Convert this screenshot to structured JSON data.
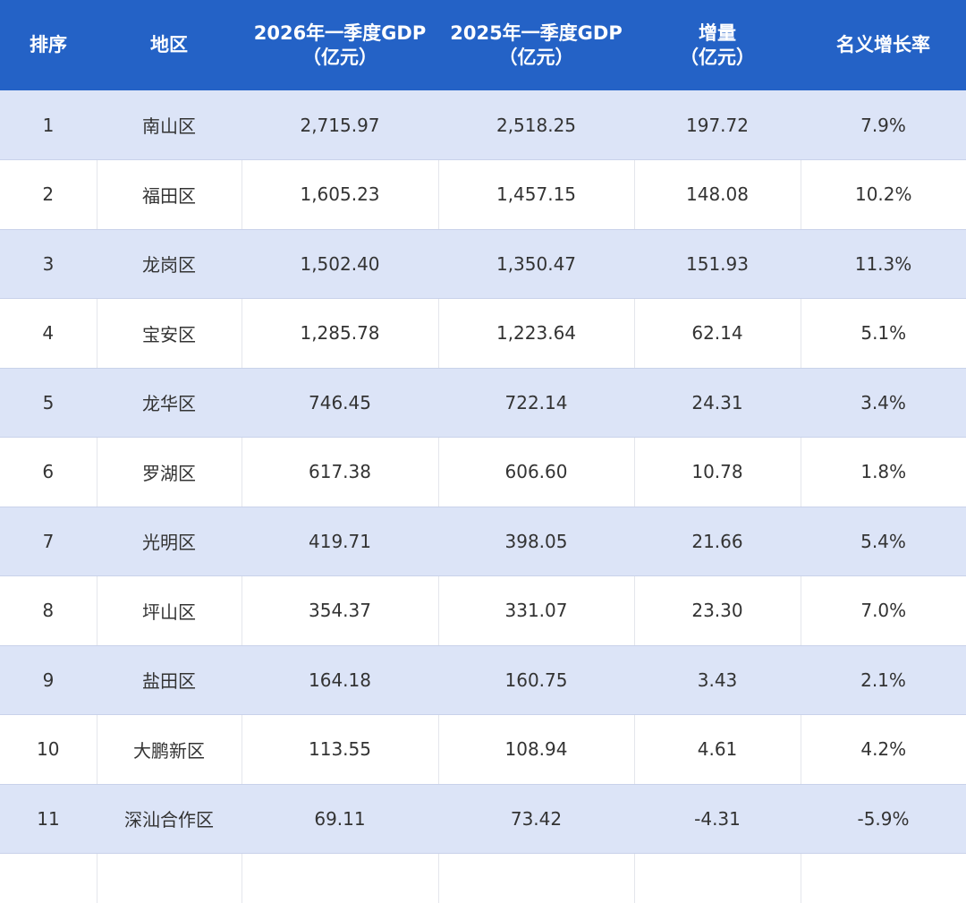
{
  "table": {
    "headers": [
      "排序",
      "地区",
      "2026年一季度GDP\n（亿元）",
      "2025年一季度GDP\n（亿元）",
      "增量\n（亿元）",
      "名义增长率"
    ],
    "rows": [
      [
        "1",
        "南山区",
        "2,715.97",
        "2,518.25",
        "197.72",
        "7.9%"
      ],
      [
        "2",
        "福田区",
        "1,605.23",
        "1,457.15",
        "148.08",
        "10.2%"
      ],
      [
        "3",
        "龙岗区",
        "1,502.40",
        "1,350.47",
        "151.93",
        "11.3%"
      ],
      [
        "4",
        "宝安区",
        "1,285.78",
        "1,223.64",
        "62.14",
        "5.1%"
      ],
      [
        "5",
        "龙华区",
        "746.45",
        "722.14",
        "24.31",
        "3.4%"
      ],
      [
        "6",
        "罗湖区",
        "617.38",
        "606.60",
        "10.78",
        "1.8%"
      ],
      [
        "7",
        "光明区",
        "419.71",
        "398.05",
        "21.66",
        "5.4%"
      ],
      [
        "8",
        "坪山区",
        "354.37",
        "331.07",
        "23.30",
        "7.0%"
      ],
      [
        "9",
        "盐田区",
        "164.18",
        "160.75",
        "3.43",
        "2.1%"
      ],
      [
        "10",
        "大鹏新区",
        "113.55",
        "108.94",
        "4.61",
        "4.2%"
      ],
      [
        "11",
        "深汕合作区",
        "69.11",
        "73.42",
        "-4.31",
        "-5.9%"
      ]
    ]
  },
  "colors": {
    "header_bg": "#2462c6",
    "row_alt_bg": "#dce4f7"
  }
}
